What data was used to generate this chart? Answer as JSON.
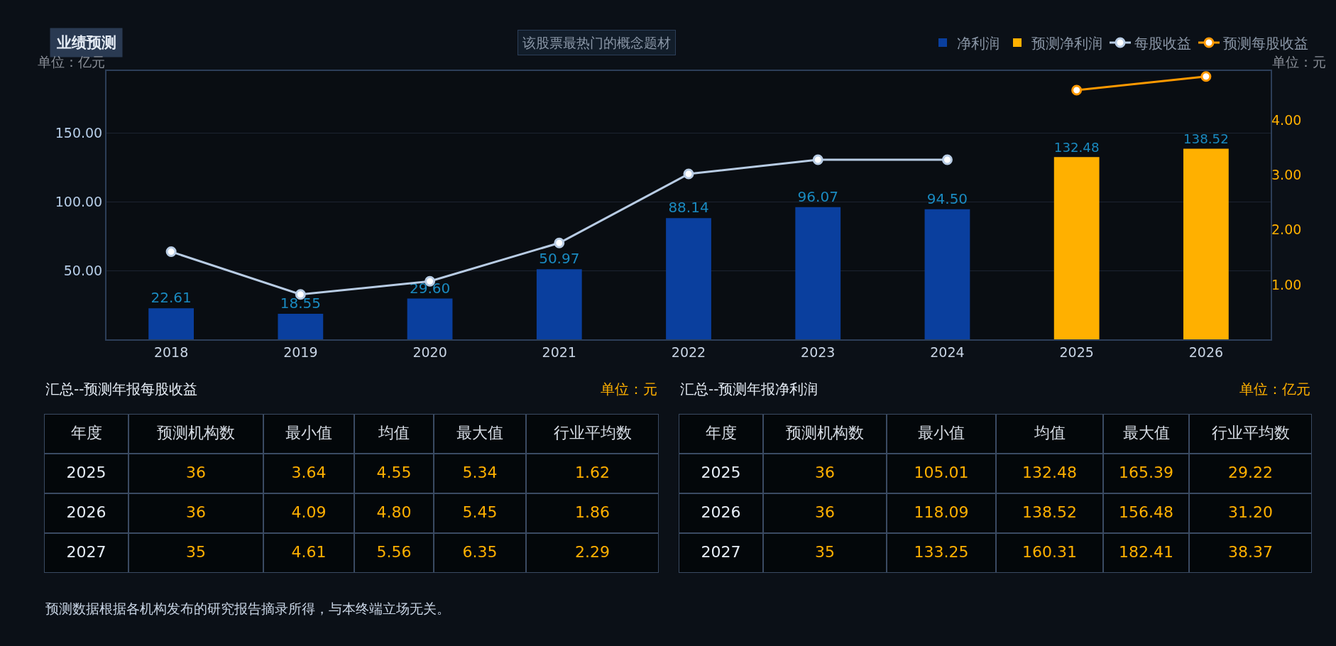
{
  "chart_data": [
    {
      "type": "bar",
      "title": "业绩预测",
      "ylabel": "单位：亿元",
      "y2label": "单位：元",
      "categories": [
        "2018",
        "2019",
        "2020",
        "2021",
        "2022",
        "2023",
        "2024",
        "2025",
        "2026"
      ],
      "series": [
        {
          "name": "净利润",
          "color": "#0a3f9e",
          "values": [
            22.61,
            18.55,
            29.6,
            50.97,
            88.14,
            96.07,
            94.5,
            null,
            null
          ],
          "value_labels": [
            "22.61",
            "18.55",
            "29.60",
            "50.97",
            "88.14",
            "96.07",
            "94.50",
            null,
            null
          ]
        },
        {
          "name": "预测净利润",
          "color": "#ffb000",
          "values": [
            null,
            null,
            null,
            null,
            null,
            null,
            null,
            132.48,
            138.52
          ],
          "value_labels": [
            null,
            null,
            null,
            null,
            null,
            null,
            null,
            "132.48",
            "138.52"
          ]
        },
        {
          "name": "每股收益",
          "type": "line",
          "axis": "y2",
          "color": "#b8cce4",
          "marker": "circle",
          "values": [
            1.6,
            0.82,
            1.06,
            1.76,
            3.02,
            3.28,
            3.28,
            null,
            null
          ]
        },
        {
          "name": "预测每股收益",
          "type": "line",
          "axis": "y2",
          "color": "#ff9900",
          "marker": "circle",
          "values": [
            null,
            null,
            null,
            null,
            null,
            null,
            null,
            4.55,
            4.8
          ]
        }
      ],
      "ylim": [
        0,
        195
      ],
      "yticks": [
        {
          "value": 50,
          "label": "50.00"
        },
        {
          "value": 100,
          "label": "100.00"
        },
        {
          "value": 150,
          "label": "150.00"
        }
      ],
      "y2lim": [
        0,
        4.9
      ],
      "y2ticks": [
        {
          "value": 1,
          "label": "1.00"
        },
        {
          "value": 2,
          "label": "2.00"
        },
        {
          "value": 3,
          "label": "3.00"
        },
        {
          "value": 4,
          "label": "4.00"
        }
      ],
      "grid": "y",
      "legend": "top right",
      "annotations": [
        "该股票最热门的概念题材"
      ]
    },
    {
      "type": "heatmap",
      "title": "汇总--预测年报每股收益",
      "subtitle": "单位：元",
      "ylabel": "年度",
      "categories": [
        "预测机构数",
        "最小值",
        "均值",
        "最大值",
        "行业平均数"
      ],
      "y_categories": [
        "2025",
        "2026",
        "2027"
      ],
      "cells": [
        [
          36,
          3.64,
          4.55,
          5.34,
          1.62
        ],
        [
          36,
          4.09,
          4.8,
          5.45,
          1.86
        ],
        [
          35,
          4.61,
          5.56,
          6.35,
          2.29
        ]
      ],
      "cell_labels": [
        [
          "36",
          "3.64",
          "4.55",
          "5.34",
          "1.62"
        ],
        [
          "36",
          "4.09",
          "4.80",
          "5.45",
          "1.86"
        ],
        [
          "35",
          "4.61",
          "5.56",
          "6.35",
          "2.29"
        ]
      ],
      "annotations": [
        "预测数据根据各机构发布的研究报告摘录所得，与本终端立场无关。"
      ]
    },
    {
      "type": "heatmap",
      "title": "汇总--预测年报净利润",
      "subtitle": "单位：亿元",
      "ylabel": "年度",
      "categories": [
        "预测机构数",
        "最小值",
        "均值",
        "最大值",
        "行业平均数"
      ],
      "y_categories": [
        "2025",
        "2026",
        "2027"
      ],
      "cells": [
        [
          36,
          105.01,
          132.48,
          165.39,
          29.22
        ],
        [
          36,
          118.09,
          138.52,
          156.48,
          31.2
        ],
        [
          35,
          133.25,
          160.31,
          182.41,
          38.37
        ]
      ],
      "cell_labels": [
        [
          "36",
          "105.01",
          "132.48",
          "165.39",
          "29.22"
        ],
        [
          "36",
          "118.09",
          "138.52",
          "156.48",
          "31.20"
        ],
        [
          "35",
          "133.25",
          "160.31",
          "182.41",
          "38.37"
        ]
      ]
    }
  ]
}
